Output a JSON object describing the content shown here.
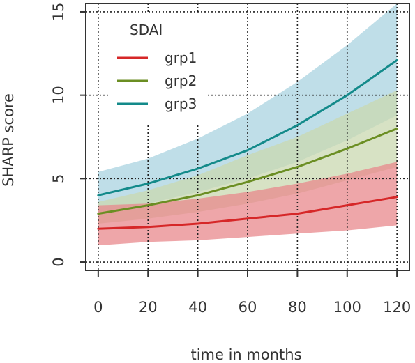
{
  "chart_data": {
    "type": "line",
    "title": "",
    "xlabel": "time in months",
    "ylabel": "SHARP score",
    "xlim": [
      -5,
      125
    ],
    "ylim": [
      -0.5,
      15.5
    ],
    "x_ticks": [
      0,
      20,
      40,
      60,
      80,
      100,
      120
    ],
    "y_ticks": [
      0,
      5,
      10,
      15
    ],
    "grid": true,
    "legend": {
      "title": "SDAI",
      "position": "top-left"
    },
    "x": [
      0,
      20,
      40,
      60,
      80,
      100,
      120
    ],
    "series": [
      {
        "name": "grp1",
        "color": "#d62728",
        "band_color": "#e8888c",
        "values": [
          2.0,
          2.1,
          2.3,
          2.6,
          2.9,
          3.4,
          3.9
        ],
        "lower": [
          1.0,
          1.2,
          1.3,
          1.5,
          1.7,
          1.9,
          2.2
        ],
        "upper": [
          3.4,
          3.5,
          3.8,
          4.2,
          4.7,
          5.3,
          6.0
        ]
      },
      {
        "name": "grp2",
        "color": "#6b8e23",
        "band_color": "#c9d8b0",
        "values": [
          2.9,
          3.4,
          4.0,
          4.8,
          5.7,
          6.8,
          8.0
        ],
        "lower": [
          2.3,
          2.6,
          3.0,
          3.5,
          4.1,
          4.9,
          5.7
        ],
        "upper": [
          3.6,
          4.3,
          5.2,
          6.4,
          7.5,
          8.9,
          10.3
        ]
      },
      {
        "name": "grp3",
        "color": "#138a8a",
        "band_color": "#a9d3e0",
        "values": [
          4.0,
          4.7,
          5.6,
          6.7,
          8.2,
          10.0,
          12.1
        ],
        "lower": [
          3.0,
          3.5,
          4.2,
          5.0,
          6.0,
          7.3,
          8.8
        ],
        "upper": [
          5.4,
          6.2,
          7.4,
          8.9,
          10.8,
          13.0,
          15.5
        ]
      }
    ]
  }
}
